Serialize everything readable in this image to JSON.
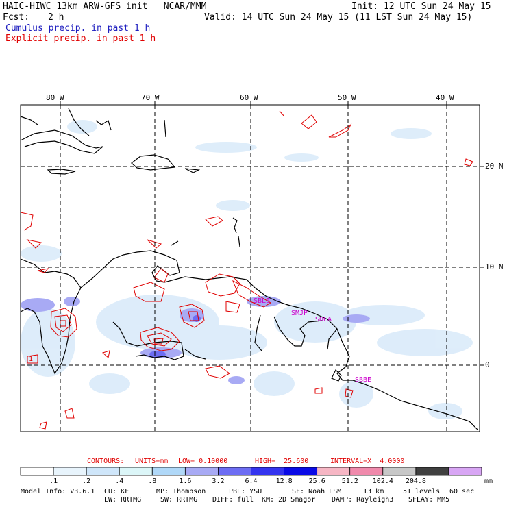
{
  "header": {
    "title_left": "HAIC-HIWC 13km ARW-GFS init   NCAR/MMM",
    "init": "Init: 12 UTC Sun 24 May 15",
    "fcst_label": "Fcst:",
    "fcst_value": "2 h",
    "valid": "Valid: 14 UTC Sun 24 May 15 (11 LST Sun 24 May 15)",
    "legend_cumulus": "Cumulus precip. in past 1 h",
    "legend_explicit": "Explicit precip. in past 1 h",
    "colors": {
      "cumulus": "#2020c0",
      "explicit": "#e00000"
    }
  },
  "map": {
    "lon_labels": [
      "80 W",
      "70 W",
      "60 W",
      "50 W",
      "40 W"
    ],
    "lat_labels": [
      "20 N",
      "10 N",
      "0"
    ],
    "stations": [
      "SBLE",
      "SMJP",
      "SOCA",
      "SBBE"
    ],
    "contour_label": "1",
    "colors": {
      "coast": "#000000",
      "grid": "#000000",
      "contour": "#e00000",
      "station": "#cc00cc"
    }
  },
  "contours_line": {
    "contours": "CONTOURS:",
    "units": "UNITS=mm",
    "low": "LOW= 0.10000",
    "high": "HIGH=  25.600",
    "interval": "INTERVAL=X  4.0000"
  },
  "colorbar": {
    "ticks": [
      ".1",
      ".2",
      ".4",
      ".8",
      "1.6",
      "3.2",
      "6.4",
      "12.8",
      "25.6",
      "51.2",
      "102.4",
      "204.8"
    ],
    "units": "mm",
    "colors": [
      "#ffffff",
      "#e8f4fc",
      "#cfe6fa",
      "#dcf6f8",
      "#b0d8f8",
      "#a8aaf4",
      "#6d6df3",
      "#3434ef",
      "#0a0ae6",
      "#f6b6c4",
      "#f08aac",
      "#c8c8c8",
      "#404040",
      "#d8a6f4"
    ]
  },
  "footer": {
    "line1": {
      "model": "Model Info: V3.6.1",
      "cu": "CU: KF",
      "mp": "MP: Thompson",
      "pbl": "PBL: YSU",
      "sf": "SF: Noah LSM",
      "res": "13 km",
      "levels": "51 levels",
      "dt": "60 sec"
    },
    "line2": {
      "lw": "LW: RRTMG",
      "sw": "SW: RRTMG",
      "diff": "DIFF: full",
      "km": "KM: 2D Smagor",
      "damp": "DAMP: Rayleigh3",
      "sflay": "SFLAY: MM5"
    }
  }
}
